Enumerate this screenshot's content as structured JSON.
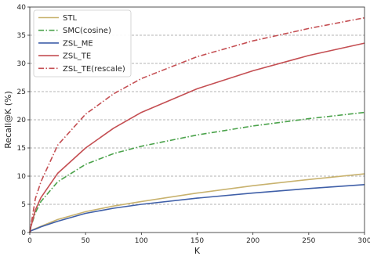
{
  "chart_data": {
    "type": "line",
    "xlabel": "K",
    "ylabel": "Recall@K (%)",
    "xlim": [
      0,
      300
    ],
    "ylim": [
      0,
      40
    ],
    "xticks": [
      0,
      50,
      100,
      150,
      200,
      250,
      300
    ],
    "yticks": [
      0,
      5,
      10,
      15,
      20,
      25,
      30,
      35,
      40
    ],
    "grid": "horizontal dashed",
    "legend_position": "top-left",
    "x": [
      1,
      5,
      10,
      25,
      50,
      75,
      100,
      150,
      200,
      250,
      300
    ],
    "series": [
      {
        "name": "STL",
        "color": "#c8b26e",
        "dash": "solid",
        "values": [
          0.3,
          0.7,
          1.1,
          2.3,
          3.7,
          4.7,
          5.5,
          7.0,
          8.3,
          9.4,
          10.4
        ]
      },
      {
        "name": "SMC(cosine)",
        "color": "#4aa24a",
        "dash": "dashdot",
        "values": [
          1.0,
          3.5,
          5.5,
          9.0,
          12.1,
          14.0,
          15.3,
          17.3,
          18.9,
          20.2,
          21.3
        ]
      },
      {
        "name": "ZSL_ME",
        "color": "#3f5fa8",
        "dash": "solid",
        "values": [
          0.3,
          0.6,
          1.0,
          2.0,
          3.4,
          4.3,
          5.0,
          6.1,
          7.0,
          7.8,
          8.5
        ]
      },
      {
        "name": "ZSL_TE",
        "color": "#c44e52",
        "dash": "solid",
        "values": [
          1.0,
          4.0,
          6.2,
          10.5,
          15.0,
          18.5,
          21.3,
          25.5,
          28.7,
          31.4,
          33.6
        ]
      },
      {
        "name": "ZSL_TE(rescale)",
        "color": "#c44e52",
        "dash": "dashdot",
        "values": [
          1.2,
          6.0,
          9.0,
          15.5,
          21.0,
          24.6,
          27.3,
          31.2,
          34.0,
          36.2,
          38.1
        ]
      }
    ]
  }
}
